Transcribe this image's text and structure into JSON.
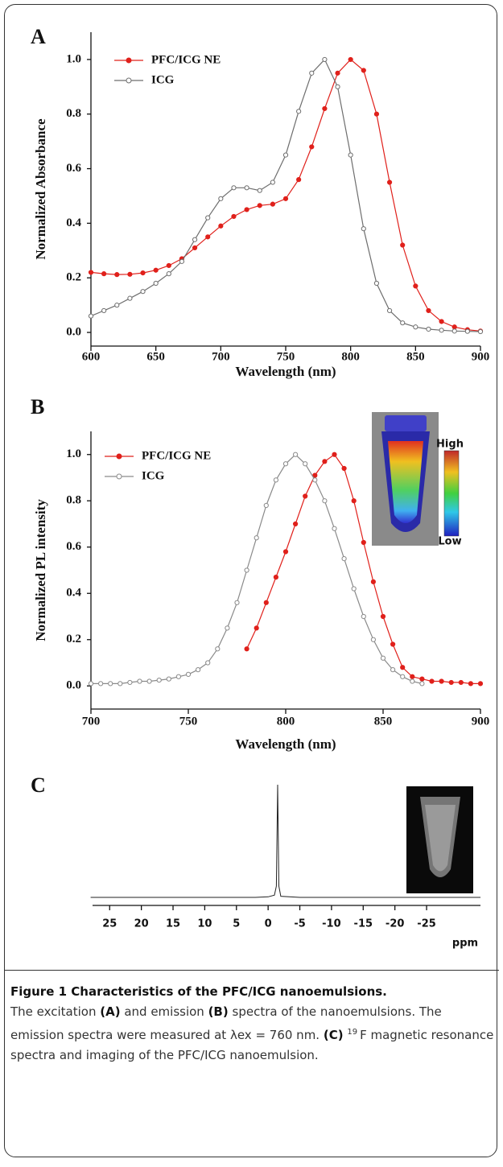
{
  "chart_data": [
    {
      "type": "line",
      "panel": "A",
      "ylabel": "Normalized Absorbance",
      "xlabel": "Wavelength (nm)",
      "x": [
        600,
        610,
        620,
        630,
        640,
        650,
        660,
        670,
        680,
        690,
        700,
        710,
        720,
        730,
        740,
        750,
        760,
        770,
        780,
        790,
        800,
        810,
        820,
        830,
        840,
        850,
        860,
        870,
        880,
        890,
        900
      ],
      "series": [
        {
          "name": "PFC/ICG NE",
          "color": "#e0201b",
          "marker": "filled",
          "values": [
            0.22,
            0.215,
            0.212,
            0.213,
            0.218,
            0.228,
            0.245,
            0.27,
            0.31,
            0.35,
            0.39,
            0.425,
            0.45,
            0.465,
            0.47,
            0.49,
            0.56,
            0.68,
            0.82,
            0.95,
            1.0,
            0.96,
            0.8,
            0.55,
            0.32,
            0.17,
            0.08,
            0.04,
            0.02,
            0.01,
            0.005
          ]
        },
        {
          "name": "ICG",
          "color": "#6e6e6e",
          "marker": "open",
          "values": [
            0.06,
            0.08,
            0.1,
            0.125,
            0.15,
            0.18,
            0.215,
            0.26,
            0.34,
            0.42,
            0.49,
            0.53,
            0.53,
            0.52,
            0.55,
            0.65,
            0.81,
            0.95,
            1.0,
            0.9,
            0.65,
            0.38,
            0.18,
            0.08,
            0.035,
            0.02,
            0.012,
            0.008,
            0.005,
            0.004,
            0.003
          ]
        }
      ],
      "xlim": [
        600,
        900
      ],
      "xticks": [
        600,
        650,
        700,
        750,
        800,
        850,
        900
      ],
      "ylim": [
        -0.05,
        1.1
      ],
      "yticks": [
        {
          "value": 0,
          "label": "0.0"
        },
        0.2,
        0.4,
        0.6,
        0.8,
        {
          "value": 1,
          "label": "1.0"
        }
      ],
      "legend": "upper left"
    },
    {
      "type": "line",
      "panel": "B",
      "ylabel": "Normalized PL intensity",
      "xlabel": "Wavelength (nm)",
      "x": [
        700,
        705,
        710,
        715,
        720,
        725,
        730,
        735,
        740,
        745,
        750,
        755,
        760,
        765,
        770,
        775,
        780,
        785,
        790,
        795,
        800,
        805,
        810,
        815,
        820,
        825,
        830,
        835,
        840,
        845,
        850,
        855,
        860,
        865,
        870,
        875,
        880,
        885,
        890,
        895,
        900
      ],
      "series": [
        {
          "name": "PFC/ICG NE",
          "color": "#e0201b",
          "marker": "filled",
          "values": [
            null,
            null,
            null,
            null,
            null,
            null,
            null,
            null,
            null,
            null,
            null,
            null,
            null,
            null,
            null,
            null,
            0.16,
            0.25,
            0.36,
            0.47,
            0.58,
            0.7,
            0.82,
            0.91,
            0.97,
            1.0,
            0.94,
            0.8,
            0.62,
            0.45,
            0.3,
            0.18,
            0.08,
            0.04,
            0.03,
            0.02,
            0.02,
            0.015,
            0.015,
            0.01,
            0.01
          ]
        },
        {
          "name": "ICG",
          "color": "#8a8a8a",
          "marker": "open",
          "values": [
            0.01,
            0.01,
            0.01,
            0.01,
            0.015,
            0.02,
            0.02,
            0.025,
            0.03,
            0.04,
            0.05,
            0.07,
            0.1,
            0.16,
            0.25,
            0.36,
            0.5,
            0.64,
            0.78,
            0.89,
            0.96,
            1.0,
            0.96,
            0.89,
            0.8,
            0.68,
            0.55,
            0.42,
            0.3,
            0.2,
            0.12,
            0.07,
            0.04,
            0.02,
            0.01,
            null,
            null,
            null,
            null,
            null,
            null
          ]
        }
      ],
      "xlim": [
        700,
        900
      ],
      "xticks": [
        700,
        750,
        800,
        850,
        900
      ],
      "ylim": [
        -0.1,
        1.1
      ],
      "yticks": [
        {
          "value": 0,
          "label": "0.0"
        },
        0.2,
        0.4,
        0.6,
        0.8,
        {
          "value": 1,
          "label": "1.0"
        }
      ],
      "legend": "upper left",
      "colorbar": {
        "high": "High",
        "low": "Low"
      }
    },
    {
      "type": "line",
      "panel": "C",
      "xlabel": "ppm",
      "x": [
        28,
        2,
        0,
        -1,
        -1.3,
        -1.5,
        -1.7,
        -2,
        -5,
        -33.5
      ],
      "series": [
        {
          "color": "#222222",
          "values": [
            0,
            0,
            0.005,
            0.02,
            0.1,
            1.0,
            0.1,
            0.01,
            0,
            0
          ]
        }
      ],
      "xlim": [
        27.7,
        -33.5
      ],
      "xticks": [
        25,
        20,
        15,
        10,
        5,
        0,
        -5,
        -10,
        -15,
        -20,
        -25
      ],
      "ylim": [
        0,
        1
      ]
    }
  ],
  "caption": {
    "title": "Figure 1 Characteristics of the PFC/ICG nanoemulsions.",
    "parts": [
      "The excitation ",
      "(A)",
      " and emission ",
      "(B)",
      " spectra of the nanoemulsions. The emission spectra were measured at λex = 760 nm. ",
      "(C)",
      "19",
      "F magnetic resonance spectra and imaging of the PFC/ICG nanoemulsion."
    ]
  }
}
